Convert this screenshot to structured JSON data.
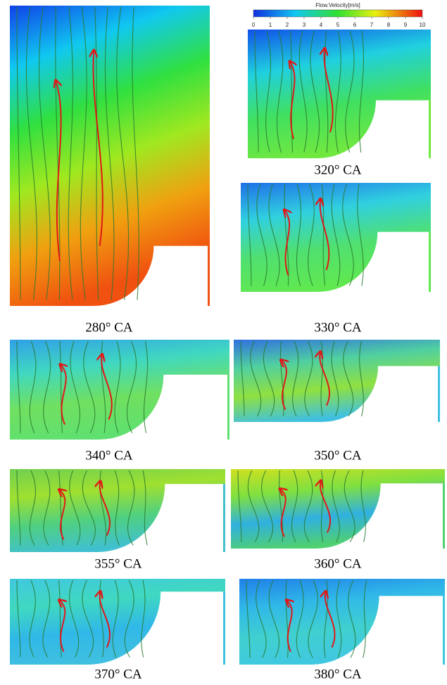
{
  "colorbar": {
    "title": "Flow.Velocity[m/s]",
    "ticks": [
      0,
      1,
      2,
      3,
      4,
      5,
      6,
      7,
      8,
      9,
      10
    ]
  },
  "panels": [
    {
      "caption": "280° CA"
    },
    {
      "caption": "320° CA"
    },
    {
      "caption": "330° CA"
    },
    {
      "caption": "340° CA"
    },
    {
      "caption": "350° CA"
    },
    {
      "caption": "355° CA"
    },
    {
      "caption": "360° CA"
    },
    {
      "caption": "370° CA"
    },
    {
      "caption": "380° CA"
    }
  ]
}
